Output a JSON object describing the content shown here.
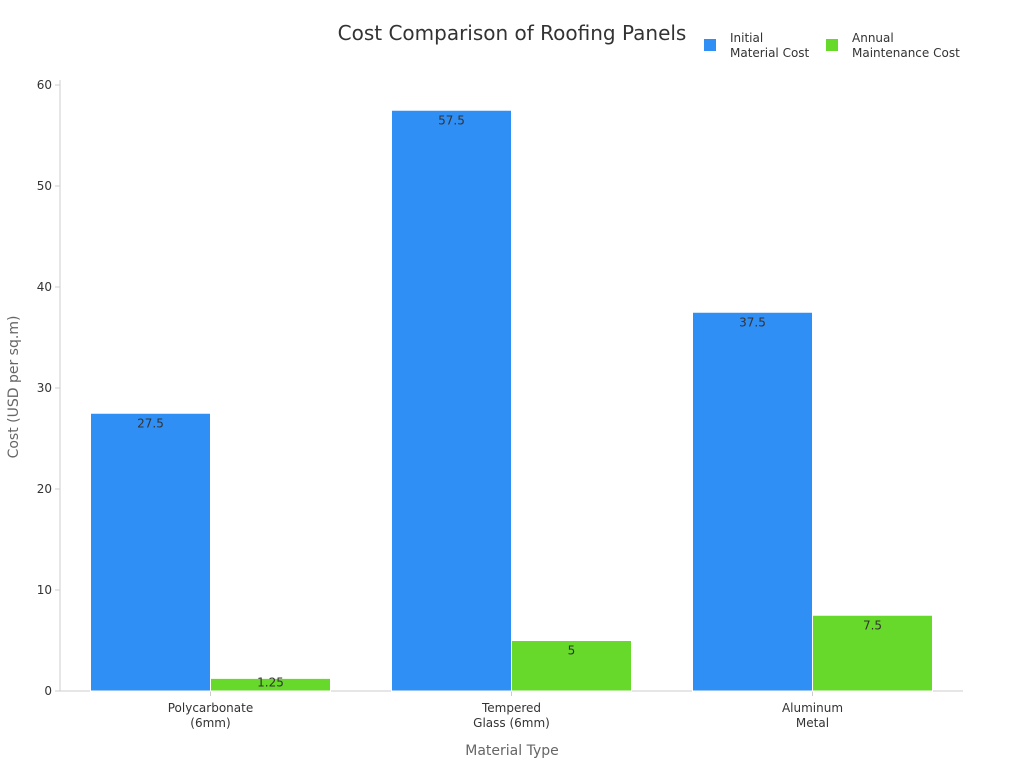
{
  "chart_data": {
    "type": "bar",
    "title": "Cost Comparison of Roofing Panels",
    "xlabel": "Material Type",
    "ylabel": "Cost (USD per sq.m)",
    "ylim": [
      0,
      60
    ],
    "yticks": [
      0,
      10,
      20,
      30,
      40,
      50,
      60
    ],
    "categories": [
      [
        "Polycarbonate",
        "(6mm)"
      ],
      [
        "Tempered",
        "Glass (6mm)"
      ],
      [
        "Aluminum",
        "Metal"
      ]
    ],
    "series": [
      {
        "name": [
          "Initial",
          "Material Cost"
        ],
        "color": "#2f8ff5",
        "values": [
          27.5,
          57.5,
          37.5
        ]
      },
      {
        "name": [
          "Annual",
          "Maintenance Cost"
        ],
        "color": "#66d92a",
        "values": [
          1.25,
          5,
          7.5
        ]
      }
    ],
    "legend_position": "top-right",
    "grid": false
  }
}
